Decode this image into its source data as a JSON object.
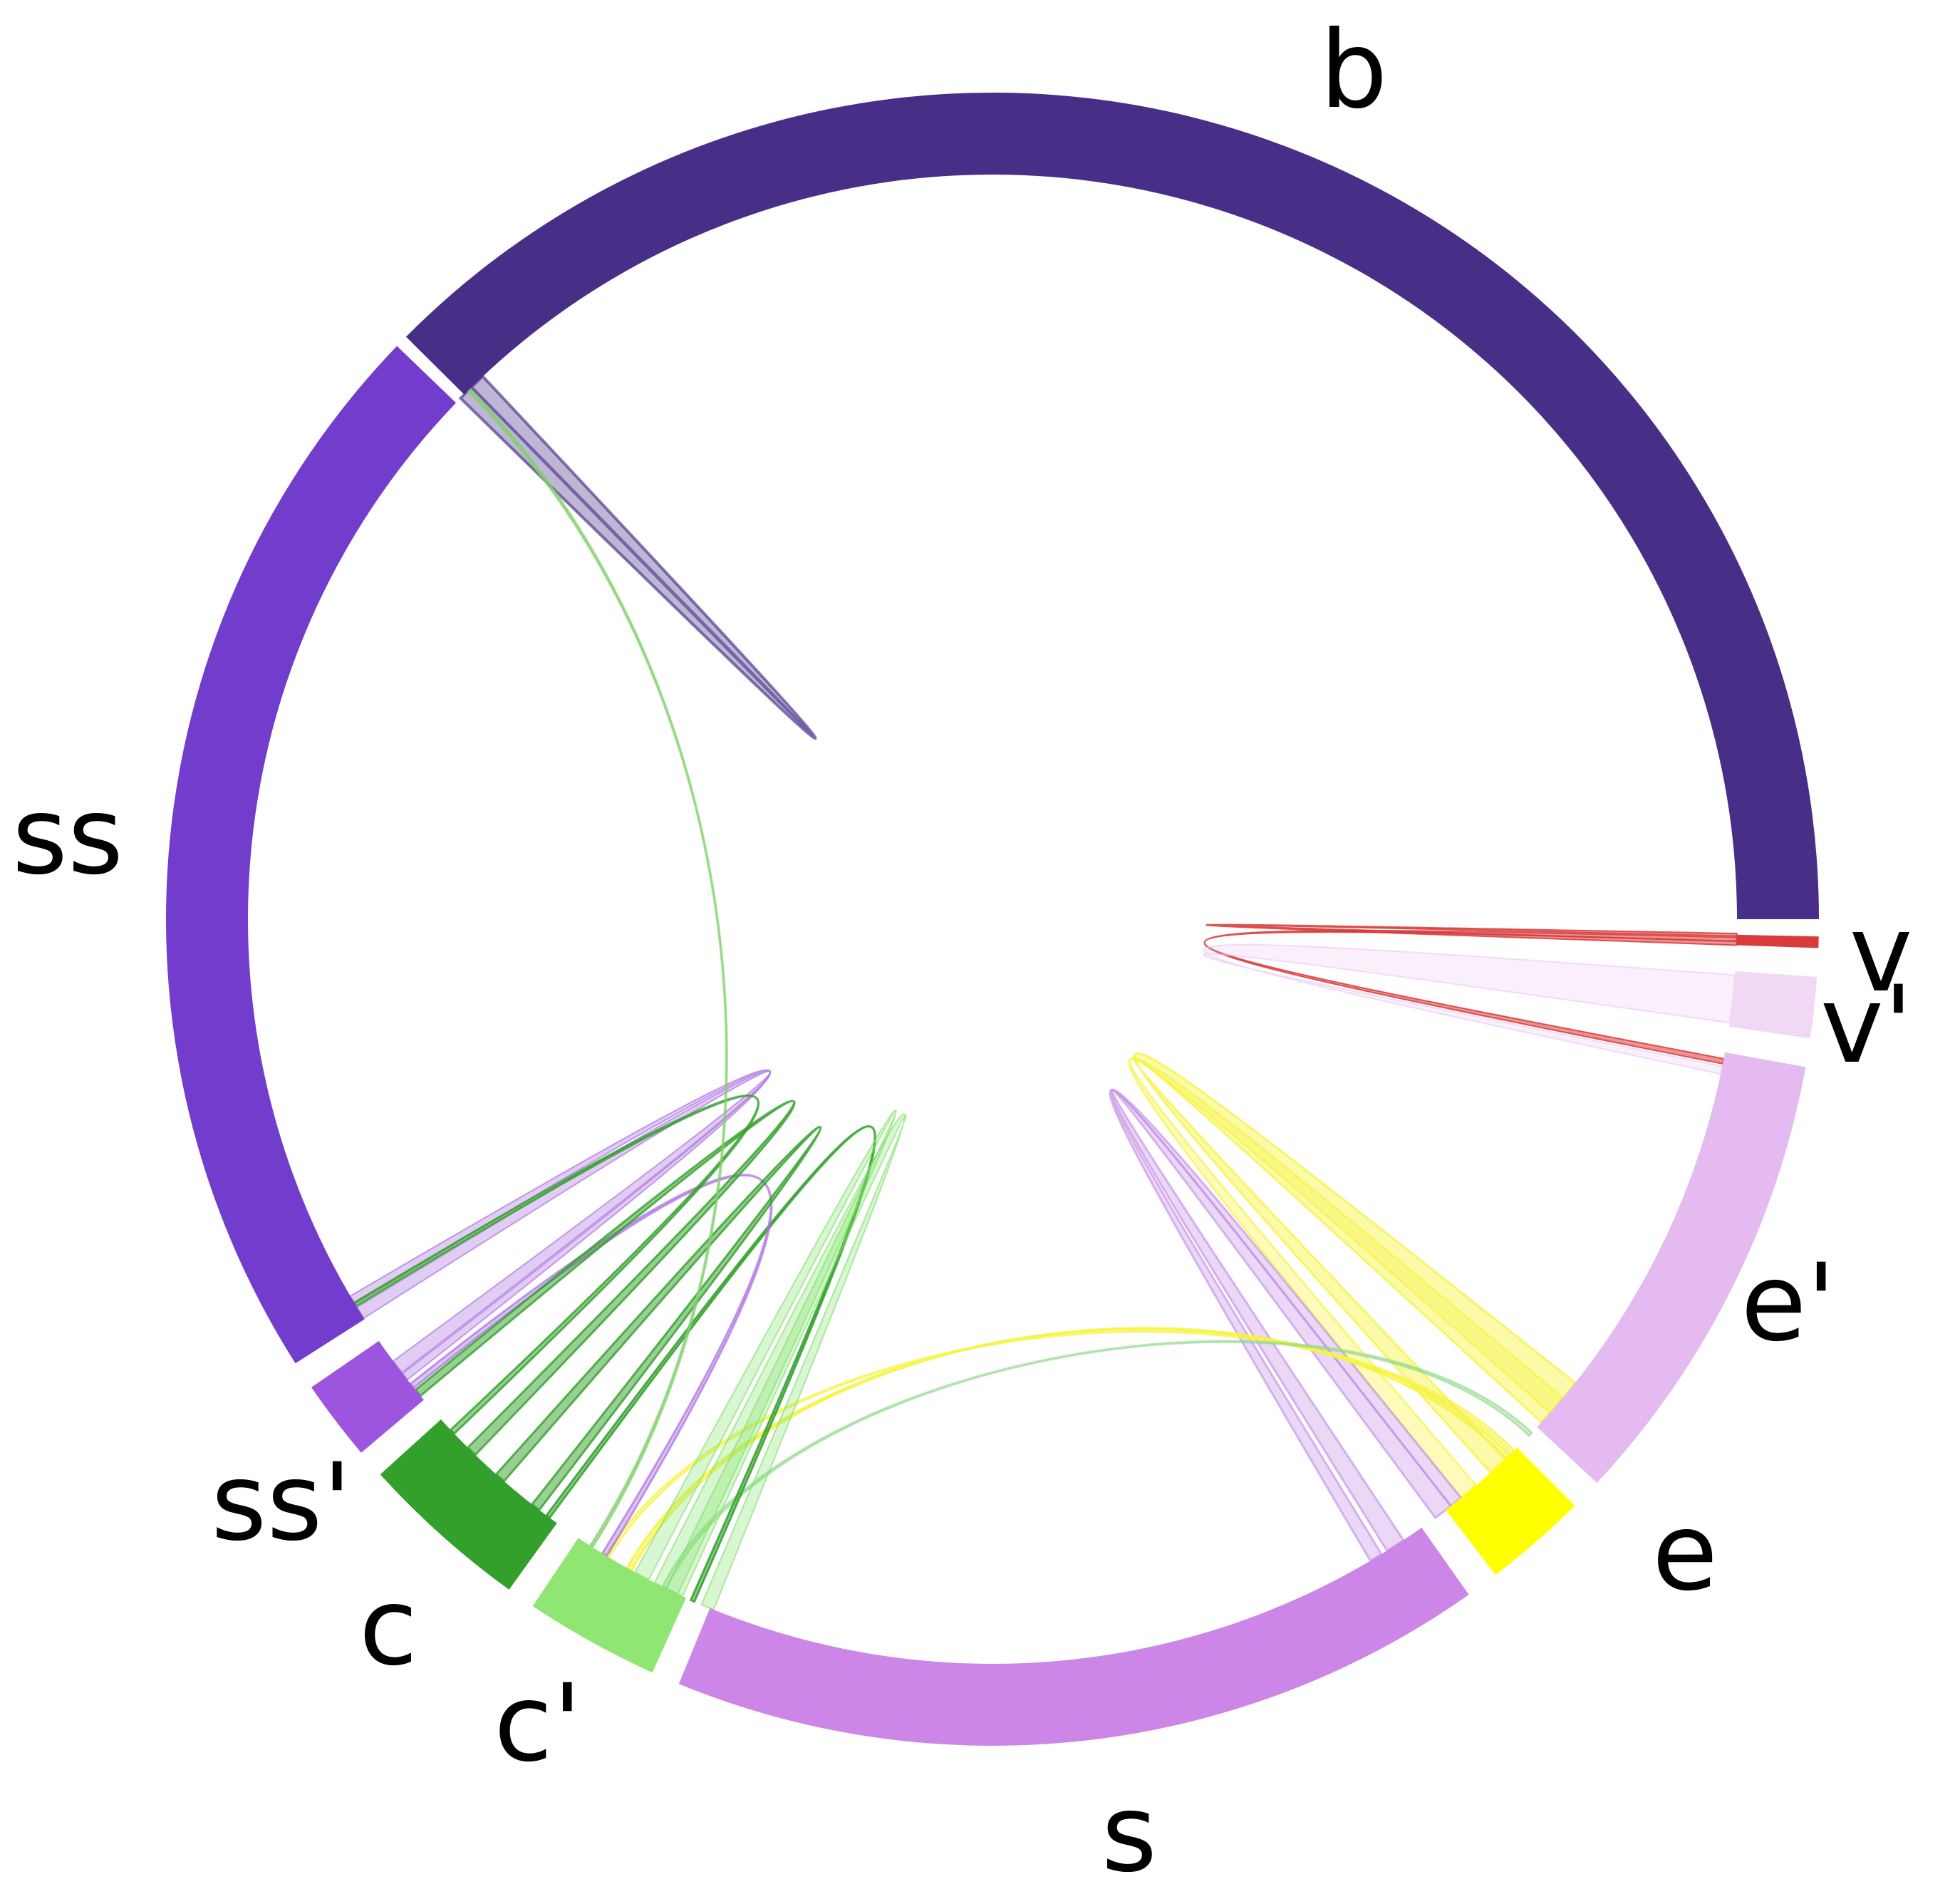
{
  "diagram": {
    "type": "chord",
    "segments": [
      {
        "id": "b",
        "label": "b",
        "color": "#472f87"
      },
      {
        "id": "v",
        "label": "v",
        "color": "#d93a3a"
      },
      {
        "id": "vp",
        "label": "v'",
        "color": "#f1d9f6"
      },
      {
        "id": "ep",
        "label": "e'",
        "color": "#e4baf0"
      },
      {
        "id": "e",
        "label": "e",
        "color": "#ffff00"
      },
      {
        "id": "s",
        "label": "s",
        "color": "#cb86e8"
      },
      {
        "id": "cp",
        "label": "c'",
        "color": "#90e672"
      },
      {
        "id": "c",
        "label": "c",
        "color": "#33a02c"
      },
      {
        "id": "ssp",
        "label": "ss'",
        "color": "#9d54de"
      },
      {
        "id": "ss",
        "label": "ss",
        "color": "#723ccc"
      }
    ],
    "ribbons": [
      {
        "from": "b",
        "to": "ss",
        "color": "#472f87"
      },
      {
        "from": "v",
        "to": "ep",
        "color": "#d93a3a"
      },
      {
        "from": "v",
        "to": "v",
        "color": "#d93a3a"
      },
      {
        "from": "vp",
        "to": "ep",
        "color": "#e8c2f2"
      },
      {
        "from": "ep",
        "to": "e",
        "color": "#f6f340"
      },
      {
        "from": "e",
        "to": "ep",
        "color": "#f6f340"
      },
      {
        "from": "e",
        "to": "s",
        "color": "#c490e6"
      },
      {
        "from": "e",
        "to": "s",
        "color": "#c490e6"
      },
      {
        "from": "e",
        "to": "cp",
        "color": "#f6f340"
      },
      {
        "from": "e",
        "to": "cp",
        "color": "#f6f340"
      },
      {
        "from": "ep",
        "to": "cp",
        "color": "#8fd88a"
      },
      {
        "from": "s",
        "to": "c",
        "color": "#33a02c"
      },
      {
        "from": "s",
        "to": "cp",
        "color": "#7fe067"
      },
      {
        "from": "cp",
        "to": "cp",
        "color": "#7fe067"
      },
      {
        "from": "cp",
        "to": "ssp",
        "color": "#a96de0"
      },
      {
        "from": "c",
        "to": "c",
        "color": "#33a02c"
      },
      {
        "from": "c",
        "to": "ssp",
        "color": "#33a02c"
      },
      {
        "from": "ss",
        "to": "ssp",
        "color": "#a96de0"
      },
      {
        "from": "ssp",
        "to": "ss",
        "color": "#a96de0"
      },
      {
        "from": "ss",
        "to": "c",
        "color": "#33a02c"
      },
      {
        "from": "b",
        "to": "cp",
        "color": "#7fd06a"
      }
    ]
  }
}
